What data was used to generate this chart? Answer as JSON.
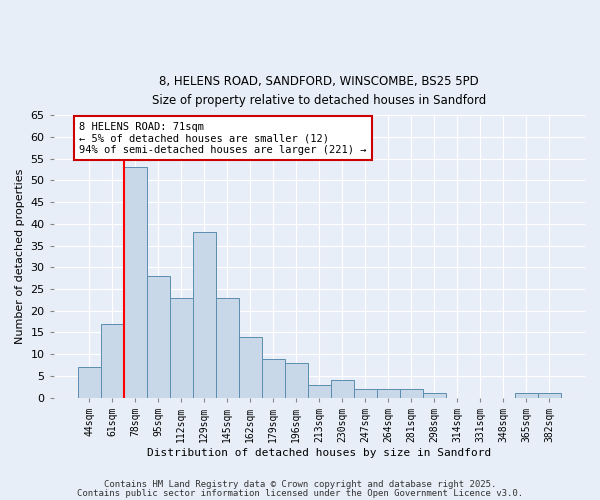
{
  "title_line1": "8, HELENS ROAD, SANDFORD, WINSCOMBE, BS25 5PD",
  "title_line2": "Size of property relative to detached houses in Sandford",
  "xlabel": "Distribution of detached houses by size in Sandford",
  "ylabel": "Number of detached properties",
  "categories": [
    "44sqm",
    "61sqm",
    "78sqm",
    "95sqm",
    "112sqm",
    "129sqm",
    "145sqm",
    "162sqm",
    "179sqm",
    "196sqm",
    "213sqm",
    "230sqm",
    "247sqm",
    "264sqm",
    "281sqm",
    "298sqm",
    "314sqm",
    "331sqm",
    "348sqm",
    "365sqm",
    "382sqm"
  ],
  "values": [
    7,
    17,
    53,
    28,
    23,
    38,
    23,
    14,
    9,
    8,
    3,
    4,
    2,
    2,
    2,
    1,
    0,
    0,
    0,
    1,
    1
  ],
  "bar_color": "#c8d8e8",
  "bar_edge_color": "#5b8db0",
  "red_line_x": 1.5,
  "annotation_title": "8 HELENS ROAD: 71sqm",
  "annotation_line1": "← 5% of detached houses are smaller (12)",
  "annotation_line2": "94% of semi-detached houses are larger (221) →",
  "annotation_box_color": "#ffffff",
  "annotation_box_edge": "#cc0000",
  "ylim": [
    0,
    65
  ],
  "yticks": [
    0,
    5,
    10,
    15,
    20,
    25,
    30,
    35,
    40,
    45,
    50,
    55,
    60,
    65
  ],
  "background_color": "#e8eef8",
  "footer_line1": "Contains HM Land Registry data © Crown copyright and database right 2025.",
  "footer_line2": "Contains public sector information licensed under the Open Government Licence v3.0."
}
